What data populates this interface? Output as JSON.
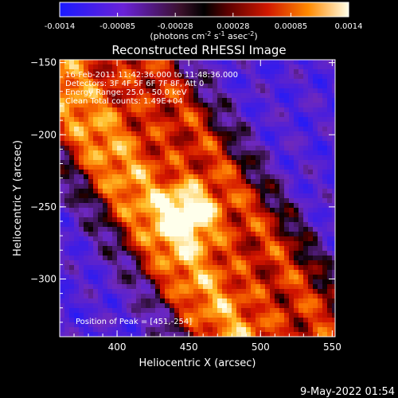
{
  "chart_data": {
    "type": "heatmap",
    "title": "Reconstructed RHESSI Image",
    "xlabel": "Heliocentric X (arcsec)",
    "ylabel": "Heliocentric Y (arcsec)",
    "xlim": [
      360,
      552
    ],
    "ylim": [
      -340,
      -148
    ],
    "x_ticks": [
      "400",
      "450",
      "500",
      "550"
    ],
    "y_ticks": [
      "-150",
      "-200",
      "-250",
      "-300"
    ],
    "colorbar": {
      "range": [
        -0.0014,
        0.0014
      ],
      "ticks": [
        "-0.0014",
        "-0.00085",
        "-0.00028",
        "0.00028",
        "0.00085",
        "0.0014"
      ],
      "unit_base": "(photons cm",
      "unit_exp1": "-2",
      "unit_mid": " s",
      "unit_exp2": "-1",
      "unit_end": " asec",
      "unit_exp3": "-2",
      "unit_close": ")"
    },
    "info_lines": [
      "16-Feb-2011 11:42:36.000 to 11:48:36.000",
      "Detectors: 3F 4F 5F 6F 7F 8F, Att 0",
      "Energy Range: 25.0 - 50.0 keV",
      "Clean    Total counts: 1.49E+04"
    ],
    "peak_label": "Position of Peak = [451,-254]",
    "peak": {
      "x": 451,
      "y": -254,
      "value": 0.0014
    },
    "ridge": {
      "slope_dy_dx": -1.45,
      "width_arcsec": 30
    },
    "lobe": {
      "x": 451,
      "y": -254,
      "radius_arcsec": 14
    }
  },
  "footer": {
    "date": "9-May-2022 01:54"
  }
}
